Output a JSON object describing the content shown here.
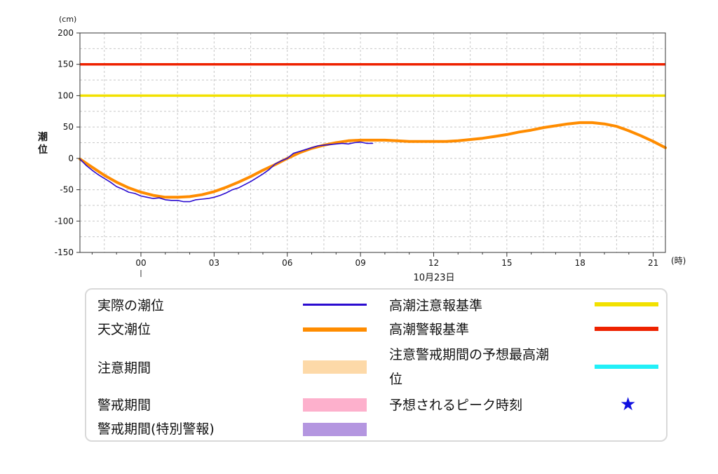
{
  "chart_data": {
    "type": "line",
    "unit_label": "(cm)",
    "ylabel": "潮位",
    "x_unit_label": "(時)",
    "date_label": "10月23日",
    "x_range_hours": [
      -2.5,
      21.5
    ],
    "ylim": [
      -150,
      200
    ],
    "y_ticks": [
      -150,
      -100,
      -50,
      0,
      50,
      100,
      150,
      200
    ],
    "x_ticks": [
      {
        "hour": 0,
        "label": "00"
      },
      {
        "hour": 3,
        "label": "03"
      },
      {
        "hour": 6,
        "label": "06"
      },
      {
        "hour": 9,
        "label": "09"
      },
      {
        "hour": 12,
        "label": "12"
      },
      {
        "hour": 15,
        "label": "15"
      },
      {
        "hour": 18,
        "label": "18"
      },
      {
        "hour": 21,
        "label": "21"
      }
    ],
    "grid": true,
    "thresholds": [
      {
        "label": "高潮注意報基準",
        "value": 100,
        "color": "#f2e100"
      },
      {
        "label": "高潮警報基準",
        "value": 150,
        "color": "#ee2200"
      }
    ],
    "series": [
      {
        "name": "天文潮位",
        "color": "#ff8c00",
        "x": [
          -2.5,
          -2.0,
          -1.5,
          -1.0,
          -0.5,
          0.0,
          0.5,
          1.0,
          1.5,
          2.0,
          2.5,
          3.0,
          3.5,
          4.0,
          4.5,
          5.0,
          5.5,
          6.0,
          6.5,
          7.0,
          7.5,
          8.0,
          8.5,
          9.0,
          9.5,
          10.0,
          10.5,
          11.0,
          11.5,
          12.0,
          12.5,
          13.0,
          13.5,
          14.0,
          14.5,
          15.0,
          15.5,
          16.0,
          16.5,
          17.0,
          17.5,
          18.0,
          18.5,
          19.0,
          19.5,
          20.0,
          20.5,
          21.0,
          21.5
        ],
        "values": [
          -1,
          -14,
          -27,
          -38,
          -47,
          -54,
          -59,
          -62,
          -62,
          -61,
          -58,
          -53,
          -46,
          -38,
          -29,
          -19,
          -10,
          0,
          9,
          16,
          21,
          25,
          28,
          29,
          29,
          29,
          28,
          27,
          27,
          27,
          27,
          28,
          30,
          32,
          35,
          38,
          42,
          45,
          49,
          52,
          55,
          57,
          57,
          55,
          51,
          44,
          36,
          27,
          17
        ]
      },
      {
        "name": "実際の潮位",
        "color": "#2a0bd0",
        "x": [
          -2.5,
          -2.25,
          -2.0,
          -1.75,
          -1.5,
          -1.25,
          -1.0,
          -0.75,
          -0.5,
          -0.25,
          0.0,
          0.25,
          0.5,
          0.75,
          1.0,
          1.25,
          1.5,
          1.75,
          2.0,
          2.25,
          2.5,
          2.75,
          3.0,
          3.25,
          3.5,
          3.75,
          4.0,
          4.25,
          4.5,
          4.75,
          5.0,
          5.25,
          5.5,
          5.75,
          6.0,
          6.25,
          6.5,
          6.75,
          7.0,
          7.25,
          7.5,
          7.75,
          8.0,
          8.25,
          8.5,
          8.75,
          9.0,
          9.25,
          9.5
        ],
        "values": [
          -1,
          -11,
          -19,
          -26,
          -32,
          -38,
          -45,
          -49,
          -54,
          -56,
          -60,
          -62,
          -64,
          -63,
          -66,
          -67,
          -67,
          -69,
          -69,
          -66,
          -65,
          -64,
          -62,
          -59,
          -55,
          -50,
          -47,
          -42,
          -37,
          -31,
          -25,
          -18,
          -9,
          -4,
          0,
          8,
          11,
          14,
          17,
          20,
          21,
          22,
          23,
          24,
          23,
          25,
          26,
          24,
          24
        ]
      }
    ],
    "legend": [
      {
        "label": "実際の潮位",
        "color": "#2a0bd0",
        "kind": "line"
      },
      {
        "label": "天文潮位",
        "color": "#ff8c00",
        "kind": "thick"
      },
      {
        "label": "注意期間",
        "color": "#fdd9a8",
        "kind": "band"
      },
      {
        "label": "警戒期間",
        "color": "#fdb0cc",
        "kind": "band"
      },
      {
        "label": "警戒期間(特別警報)",
        "color": "#b496e0",
        "kind": "band"
      },
      {
        "label": "高潮注意報基準",
        "color": "#f2e100",
        "kind": "thick"
      },
      {
        "label": "高潮警報基準",
        "color": "#ee2200",
        "kind": "thick"
      },
      {
        "label": "注意警戒期間の予想最高潮",
        "label2": "位",
        "color": "#22f0f8",
        "kind": "thick"
      },
      {
        "label": "予想されるピーク時刻",
        "color": "#1010e0",
        "kind": "star",
        "glyph": "★"
      }
    ]
  }
}
